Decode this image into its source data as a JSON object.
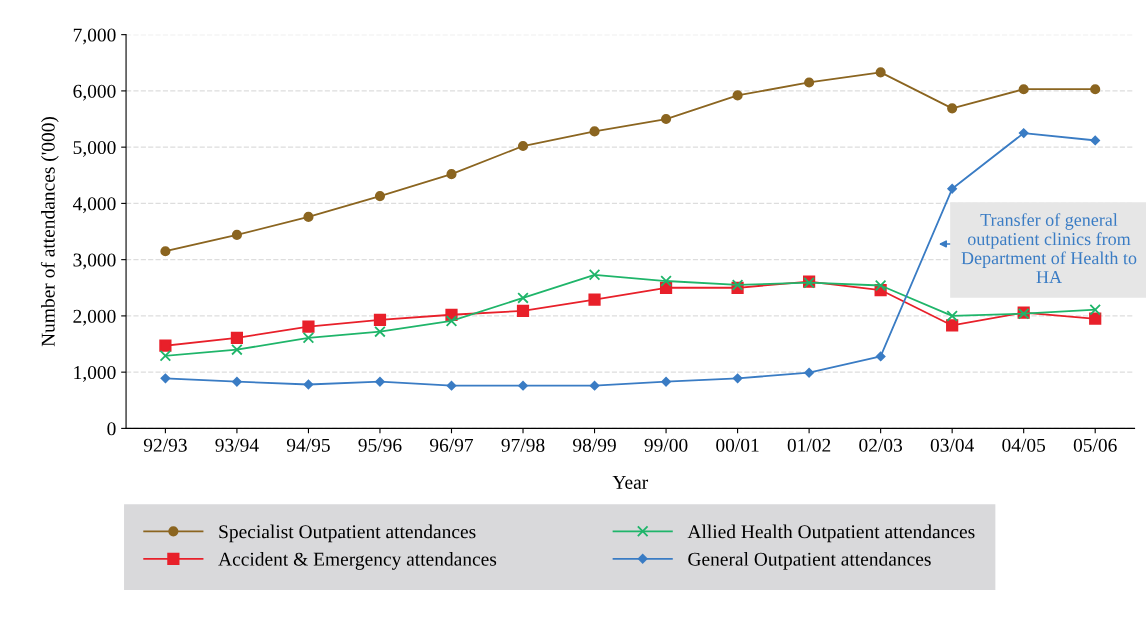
{
  "chart_data": {
    "type": "line",
    "xlabel": "Year",
    "ylabel": "Number of attendances ('000)",
    "categories": [
      "92/93",
      "93/94",
      "94/95",
      "95/96",
      "96/97",
      "97/98",
      "98/99",
      "99/00",
      "00/01",
      "01/02",
      "02/03",
      "03/04",
      "04/05",
      "05/06"
    ],
    "ylim": [
      0,
      7000
    ],
    "yticks": [
      {
        "value": 0,
        "label": "0"
      },
      {
        "value": 1000,
        "label": "1,000"
      },
      {
        "value": 2000,
        "label": "2,000"
      },
      {
        "value": 3000,
        "label": "3,000"
      },
      {
        "value": 4000,
        "label": "4,000"
      },
      {
        "value": 5000,
        "label": "5,000"
      },
      {
        "value": 6000,
        "label": "6,000"
      },
      {
        "value": 7000,
        "label": "7,000"
      }
    ],
    "grid": "y",
    "legend": "bottom",
    "series": [
      {
        "name": "Specialist Outpatient attendances",
        "color": "#8b6520",
        "marker": "circle",
        "values": [
          3150,
          3440,
          3760,
          4130,
          4520,
          5020,
          5280,
          5500,
          5920,
          6150,
          6330,
          5690,
          6030,
          6030
        ]
      },
      {
        "name": "Accident & Emergency attendances",
        "color": "#e8202a",
        "marker": "square",
        "values": [
          1470,
          1610,
          1810,
          1930,
          2020,
          2090,
          2290,
          2500,
          2500,
          2610,
          2460,
          1830,
          2060,
          1950
        ]
      },
      {
        "name": "Allied Health Outpatient attendances",
        "color": "#1fb56a",
        "marker": "cross",
        "values": [
          1290,
          1400,
          1610,
          1720,
          1910,
          2320,
          2730,
          2620,
          2550,
          2590,
          2540,
          2000,
          2040,
          2110
        ]
      },
      {
        "name": "General Outpatient attendances",
        "color": "#3a7cc4",
        "marker": "diamond",
        "values": [
          890,
          830,
          780,
          830,
          760,
          760,
          760,
          830,
          890,
          990,
          1280,
          4260,
          5250,
          5120
        ]
      }
    ],
    "annotations": [
      "Transfer of general outpatient clinics from Department of Health to HA"
    ]
  }
}
